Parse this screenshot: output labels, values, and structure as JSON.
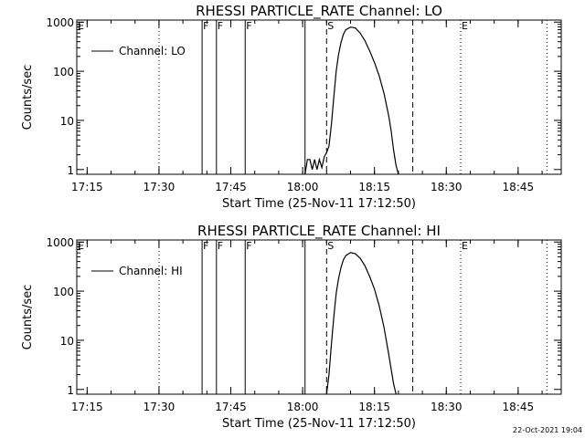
{
  "timestamp": "22-Oct-2021 19:04",
  "chart_data": [
    {
      "type": "line",
      "title": "RHESSI PARTICLE_RATE Channel: LO",
      "xlabel": "Start Time (25-Nov-11 17:12:50)",
      "ylabel": "Counts/sec",
      "y_scale": "log",
      "xlim": [
        "17:12:50",
        "18:54:00"
      ],
      "ylim": [
        0.8,
        1100
      ],
      "x_ticks": [
        "17:15",
        "17:30",
        "17:45",
        "18:00",
        "18:15",
        "18:30",
        "18:45"
      ],
      "y_ticks": [
        "1",
        "10",
        "100",
        "1000"
      ],
      "legend": {
        "placement": "top-left",
        "entries": [
          "Channel: LO"
        ]
      },
      "markers": [
        {
          "flag": "E",
          "time": "17:12:50",
          "style": "dotted"
        },
        {
          "flag": "F",
          "time": "17:39:00",
          "style": "solid"
        },
        {
          "flag": "F",
          "time": "17:42:00",
          "style": "solid"
        },
        {
          "flag": "F",
          "time": "17:48:00",
          "style": "solid"
        },
        {
          "flag": "",
          "time": "18:00:30",
          "style": "solid"
        },
        {
          "flag": "S",
          "time": "18:05:00",
          "style": "dashed"
        },
        {
          "flag": "",
          "time": "18:23:00",
          "style": "dashed"
        },
        {
          "flag": "E",
          "time": "18:33:00",
          "style": "dotted"
        },
        {
          "flag": "",
          "time": "17:30:00",
          "style": "dotted"
        },
        {
          "flag": "",
          "time": "18:51:00",
          "style": "dotted"
        }
      ],
      "series": [
        {
          "name": "Channel: LO",
          "points": [
            [
              "18:00:30",
              0.8
            ],
            [
              "18:01:00",
              1.6
            ],
            [
              "18:01:30",
              1.6
            ],
            [
              "18:02:00",
              1.0
            ],
            [
              "18:02:30",
              1.6
            ],
            [
              "18:03:00",
              1.0
            ],
            [
              "18:03:30",
              1.6
            ],
            [
              "18:04:00",
              1.1
            ],
            [
              "18:04:30",
              1.8
            ],
            [
              "18:05:00",
              2.2
            ],
            [
              "18:05:30",
              3.0
            ],
            [
              "18:06:00",
              8
            ],
            [
              "18:06:30",
              30
            ],
            [
              "18:07:00",
              100
            ],
            [
              "18:07:30",
              220
            ],
            [
              "18:08:00",
              380
            ],
            [
              "18:08:30",
              560
            ],
            [
              "18:09:00",
              700
            ],
            [
              "18:10:00",
              790
            ],
            [
              "18:11:00",
              760
            ],
            [
              "18:12:00",
              600
            ],
            [
              "18:13:00",
              420
            ],
            [
              "18:14:00",
              260
            ],
            [
              "18:15:00",
              150
            ],
            [
              "18:16:00",
              80
            ],
            [
              "18:17:00",
              35
            ],
            [
              "18:18:00",
              12
            ],
            [
              "18:18:30",
              6
            ],
            [
              "18:19:00",
              2.5
            ],
            [
              "18:19:30",
              1.2
            ],
            [
              "18:20:00",
              0.8
            ]
          ]
        }
      ]
    },
    {
      "type": "line",
      "title": "RHESSI PARTICLE_RATE Channel: HI",
      "xlabel": "Start Time (25-Nov-11 17:12:50)",
      "ylabel": "Counts/sec",
      "y_scale": "log",
      "xlim": [
        "17:12:50",
        "18:54:00"
      ],
      "ylim": [
        0.8,
        1100
      ],
      "x_ticks": [
        "17:15",
        "17:30",
        "17:45",
        "18:00",
        "18:15",
        "18:30",
        "18:45"
      ],
      "y_ticks": [
        "1",
        "10",
        "100",
        "1000"
      ],
      "legend": {
        "placement": "top-left",
        "entries": [
          "Channel: HI"
        ]
      },
      "markers": [
        {
          "flag": "E",
          "time": "17:12:50",
          "style": "dotted"
        },
        {
          "flag": "F",
          "time": "17:39:00",
          "style": "solid"
        },
        {
          "flag": "F",
          "time": "17:42:00",
          "style": "solid"
        },
        {
          "flag": "F",
          "time": "17:48:00",
          "style": "solid"
        },
        {
          "flag": "",
          "time": "18:00:30",
          "style": "solid"
        },
        {
          "flag": "S",
          "time": "18:05:00",
          "style": "dashed"
        },
        {
          "flag": "",
          "time": "18:23:00",
          "style": "dashed"
        },
        {
          "flag": "E",
          "time": "18:33:00",
          "style": "dotted"
        },
        {
          "flag": "",
          "time": "17:30:00",
          "style": "dotted"
        },
        {
          "flag": "",
          "time": "18:51:00",
          "style": "dotted"
        }
      ],
      "series": [
        {
          "name": "Channel: HI",
          "points": [
            [
              "18:05:00",
              0.8
            ],
            [
              "18:05:30",
              2.0
            ],
            [
              "18:06:00",
              8
            ],
            [
              "18:06:30",
              30
            ],
            [
              "18:07:00",
              90
            ],
            [
              "18:07:30",
              180
            ],
            [
              "18:08:00",
              300
            ],
            [
              "18:08:30",
              430
            ],
            [
              "18:09:00",
              530
            ],
            [
              "18:10:00",
              610
            ],
            [
              "18:11:00",
              580
            ],
            [
              "18:12:00",
              470
            ],
            [
              "18:13:00",
              330
            ],
            [
              "18:14:00",
              200
            ],
            [
              "18:15:00",
              110
            ],
            [
              "18:16:00",
              50
            ],
            [
              "18:17:00",
              18
            ],
            [
              "18:18:00",
              5
            ],
            [
              "18:19:00",
              1.3
            ],
            [
              "18:19:30",
              0.8
            ]
          ]
        }
      ]
    }
  ]
}
